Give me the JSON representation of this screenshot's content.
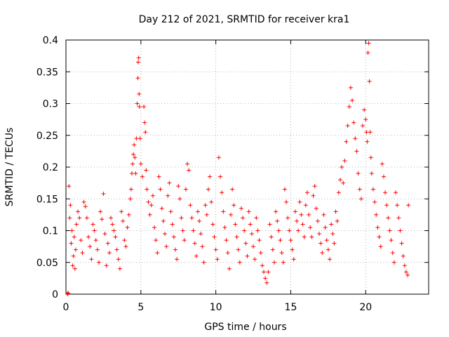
{
  "chart_data": {
    "type": "scatter",
    "title": "Day 212 of 2021, SRMTID for receiver kra1",
    "xlabel": "GPS time / hours",
    "ylabel": "SRMTID / TECUs",
    "xlim": [
      0,
      24.2
    ],
    "ylim": [
      0,
      0.4
    ],
    "xticks": [
      0,
      5,
      10,
      15,
      20
    ],
    "yticks": [
      0,
      0.05,
      0.1,
      0.15,
      0.2,
      0.25,
      0.3,
      0.35,
      0.4
    ],
    "xtick_labels": [
      "0",
      "5",
      "10",
      "15",
      "20"
    ],
    "ytick_labels": [
      "0",
      "0.05",
      "0.1",
      "0.15",
      "0.2",
      "0.25",
      "0.3",
      "0.35",
      "0.4"
    ],
    "grid": true,
    "marker": "+",
    "color": "#ff0000",
    "series": [
      {
        "name": "SRMTID",
        "points": [
          [
            0.1,
            0.0
          ],
          [
            0.12,
            0.001
          ],
          [
            0.15,
            0.002
          ],
          [
            0.2,
            0.17
          ],
          [
            0.3,
            0.14
          ],
          [
            0.25,
            0.12
          ],
          [
            0.4,
            0.1
          ],
          [
            0.35,
            0.08
          ],
          [
            0.5,
            0.06
          ],
          [
            0.45,
            0.045
          ],
          [
            0.6,
            0.04
          ],
          [
            0.55,
            0.09
          ],
          [
            0.7,
            0.11
          ],
          [
            0.65,
            0.07
          ],
          [
            0.8,
            0.13
          ],
          [
            0.9,
            0.12
          ],
          [
            1.0,
            0.085
          ],
          [
            1.1,
            0.065
          ],
          [
            1.2,
            0.145
          ],
          [
            1.3,
            0.138
          ],
          [
            1.4,
            0.12
          ],
          [
            1.5,
            0.09
          ],
          [
            1.6,
            0.075
          ],
          [
            1.7,
            0.055
          ],
          [
            1.8,
            0.11
          ],
          [
            1.9,
            0.1
          ],
          [
            2.0,
            0.085
          ],
          [
            2.1,
            0.07
          ],
          [
            2.2,
            0.05
          ],
          [
            2.3,
            0.13
          ],
          [
            2.4,
            0.118
          ],
          [
            2.5,
            0.158
          ],
          [
            2.6,
            0.095
          ],
          [
            2.7,
            0.045
          ],
          [
            2.8,
            0.08
          ],
          [
            2.9,
            0.065
          ],
          [
            3.0,
            0.12
          ],
          [
            3.1,
            0.11
          ],
          [
            3.2,
            0.1
          ],
          [
            3.3,
            0.09
          ],
          [
            3.4,
            0.07
          ],
          [
            3.5,
            0.055
          ],
          [
            3.6,
            0.04
          ],
          [
            3.7,
            0.13
          ],
          [
            3.8,
            0.115
          ],
          [
            3.9,
            0.085
          ],
          [
            4.0,
            0.075
          ],
          [
            4.1,
            0.105
          ],
          [
            4.2,
            0.125
          ],
          [
            4.3,
            0.15
          ],
          [
            4.35,
            0.165
          ],
          [
            4.4,
            0.19
          ],
          [
            4.45,
            0.205
          ],
          [
            4.5,
            0.22
          ],
          [
            4.55,
            0.235
          ],
          [
            4.6,
            0.215
          ],
          [
            4.65,
            0.19
          ],
          [
            4.7,
            0.245
          ],
          [
            4.75,
            0.3
          ],
          [
            4.8,
            0.34
          ],
          [
            4.82,
            0.365
          ],
          [
            4.85,
            0.372
          ],
          [
            4.88,
            0.315
          ],
          [
            4.9,
            0.295
          ],
          [
            4.95,
            0.245
          ],
          [
            5.0,
            0.205
          ],
          [
            5.1,
            0.185
          ],
          [
            5.2,
            0.295
          ],
          [
            5.25,
            0.27
          ],
          [
            5.3,
            0.255
          ],
          [
            5.35,
            0.195
          ],
          [
            5.4,
            0.165
          ],
          [
            5.5,
            0.145
          ],
          [
            5.6,
            0.125
          ],
          [
            5.7,
            0.14
          ],
          [
            5.8,
            0.155
          ],
          [
            5.9,
            0.105
          ],
          [
            6.0,
            0.085
          ],
          [
            6.1,
            0.065
          ],
          [
            6.2,
            0.185
          ],
          [
            6.3,
            0.165
          ],
          [
            6.4,
            0.135
          ],
          [
            6.5,
            0.115
          ],
          [
            6.6,
            0.095
          ],
          [
            6.7,
            0.075
          ],
          [
            6.8,
            0.155
          ],
          [
            6.9,
            0.175
          ],
          [
            7.0,
            0.13
          ],
          [
            7.1,
            0.11
          ],
          [
            7.2,
            0.09
          ],
          [
            7.3,
            0.07
          ],
          [
            7.4,
            0.055
          ],
          [
            7.5,
            0.17
          ],
          [
            7.6,
            0.15
          ],
          [
            7.7,
            0.12
          ],
          [
            7.8,
            0.1
          ],
          [
            7.9,
            0.085
          ],
          [
            8.0,
            0.165
          ],
          [
            8.1,
            0.205
          ],
          [
            8.2,
            0.195
          ],
          [
            8.3,
            0.14
          ],
          [
            8.4,
            0.12
          ],
          [
            8.5,
            0.1
          ],
          [
            8.6,
            0.08
          ],
          [
            8.7,
            0.06
          ],
          [
            8.8,
            0.13
          ],
          [
            8.9,
            0.115
          ],
          [
            9.0,
            0.095
          ],
          [
            9.1,
            0.075
          ],
          [
            9.2,
            0.05
          ],
          [
            9.3,
            0.14
          ],
          [
            9.4,
            0.125
          ],
          [
            9.5,
            0.165
          ],
          [
            9.6,
            0.185
          ],
          [
            9.7,
            0.145
          ],
          [
            9.8,
            0.11
          ],
          [
            9.9,
            0.09
          ],
          [
            10.0,
            0.07
          ],
          [
            10.1,
            0.055
          ],
          [
            10.2,
            0.215
          ],
          [
            10.3,
            0.185
          ],
          [
            10.4,
            0.16
          ],
          [
            10.5,
            0.13
          ],
          [
            10.6,
            0.105
          ],
          [
            10.7,
            0.085
          ],
          [
            10.8,
            0.065
          ],
          [
            10.9,
            0.04
          ],
          [
            11.0,
            0.125
          ],
          [
            11.1,
            0.165
          ],
          [
            11.2,
            0.14
          ],
          [
            11.3,
            0.11
          ],
          [
            11.4,
            0.09
          ],
          [
            11.5,
            0.07
          ],
          [
            11.6,
            0.05
          ],
          [
            11.7,
            0.135
          ],
          [
            11.8,
            0.12
          ],
          [
            11.9,
            0.1
          ],
          [
            12.0,
            0.08
          ],
          [
            12.1,
            0.06
          ],
          [
            12.2,
            0.13
          ],
          [
            12.3,
            0.11
          ],
          [
            12.4,
            0.095
          ],
          [
            12.5,
            0.075
          ],
          [
            12.6,
            0.055
          ],
          [
            12.7,
            0.12
          ],
          [
            12.8,
            0.1
          ],
          [
            12.9,
            0.085
          ],
          [
            13.0,
            0.065
          ],
          [
            13.1,
            0.045
          ],
          [
            13.2,
            0.035
          ],
          [
            13.3,
            0.025
          ],
          [
            13.4,
            0.018
          ],
          [
            13.5,
            0.035
          ],
          [
            13.6,
            0.11
          ],
          [
            13.7,
            0.09
          ],
          [
            13.8,
            0.07
          ],
          [
            13.9,
            0.05
          ],
          [
            14.0,
            0.13
          ],
          [
            14.1,
            0.115
          ],
          [
            14.2,
            0.1
          ],
          [
            14.3,
            0.085
          ],
          [
            14.4,
            0.065
          ],
          [
            14.5,
            0.05
          ],
          [
            14.6,
            0.165
          ],
          [
            14.7,
            0.145
          ],
          [
            14.8,
            0.12
          ],
          [
            14.9,
            0.1
          ],
          [
            15.0,
            0.085
          ],
          [
            15.1,
            0.07
          ],
          [
            15.2,
            0.055
          ],
          [
            15.3,
            0.13
          ],
          [
            15.4,
            0.115
          ],
          [
            15.5,
            0.1
          ],
          [
            15.6,
            0.145
          ],
          [
            15.7,
            0.125
          ],
          [
            15.8,
            0.11
          ],
          [
            15.9,
            0.09
          ],
          [
            16.0,
            0.14
          ],
          [
            16.1,
            0.16
          ],
          [
            16.2,
            0.125
          ],
          [
            16.3,
            0.105
          ],
          [
            16.4,
            0.09
          ],
          [
            16.5,
            0.155
          ],
          [
            16.6,
            0.17
          ],
          [
            16.7,
            0.135
          ],
          [
            16.8,
            0.115
          ],
          [
            16.9,
            0.095
          ],
          [
            17.0,
            0.08
          ],
          [
            17.1,
            0.065
          ],
          [
            17.2,
            0.125
          ],
          [
            17.3,
            0.105
          ],
          [
            17.4,
            0.085
          ],
          [
            17.5,
            0.07
          ],
          [
            17.6,
            0.055
          ],
          [
            17.7,
            0.11
          ],
          [
            17.8,
            0.095
          ],
          [
            17.9,
            0.08
          ],
          [
            18.0,
            0.13
          ],
          [
            18.1,
            0.115
          ],
          [
            18.2,
            0.16
          ],
          [
            18.3,
            0.18
          ],
          [
            18.4,
            0.2
          ],
          [
            18.5,
            0.175
          ],
          [
            18.6,
            0.21
          ],
          [
            18.7,
            0.24
          ],
          [
            18.8,
            0.265
          ],
          [
            18.9,
            0.295
          ],
          [
            19.0,
            0.325
          ],
          [
            19.1,
            0.305
          ],
          [
            19.2,
            0.27
          ],
          [
            19.3,
            0.245
          ],
          [
            19.4,
            0.225
          ],
          [
            19.5,
            0.19
          ],
          [
            19.6,
            0.165
          ],
          [
            19.7,
            0.15
          ],
          [
            19.8,
            0.265
          ],
          [
            19.9,
            0.29
          ],
          [
            20.0,
            0.275
          ],
          [
            20.05,
            0.255
          ],
          [
            20.1,
            0.24
          ],
          [
            20.15,
            0.38
          ],
          [
            20.2,
            0.395
          ],
          [
            20.25,
            0.335
          ],
          [
            20.3,
            0.255
          ],
          [
            20.35,
            0.215
          ],
          [
            20.4,
            0.19
          ],
          [
            20.5,
            0.165
          ],
          [
            20.6,
            0.145
          ],
          [
            20.7,
            0.125
          ],
          [
            20.8,
            0.105
          ],
          [
            20.9,
            0.09
          ],
          [
            21.0,
            0.075
          ],
          [
            21.1,
            0.205
          ],
          [
            21.2,
            0.185
          ],
          [
            21.3,
            0.16
          ],
          [
            21.4,
            0.14
          ],
          [
            21.5,
            0.12
          ],
          [
            21.6,
            0.1
          ],
          [
            21.7,
            0.085
          ],
          [
            21.8,
            0.065
          ],
          [
            21.9,
            0.05
          ],
          [
            22.0,
            0.16
          ],
          [
            22.1,
            0.14
          ],
          [
            22.2,
            0.12
          ],
          [
            22.3,
            0.1
          ],
          [
            22.4,
            0.08
          ],
          [
            22.5,
            0.06
          ],
          [
            22.6,
            0.045
          ],
          [
            22.7,
            0.035
          ],
          [
            22.8,
            0.03
          ],
          [
            22.85,
            0.14
          ]
        ]
      }
    ]
  }
}
